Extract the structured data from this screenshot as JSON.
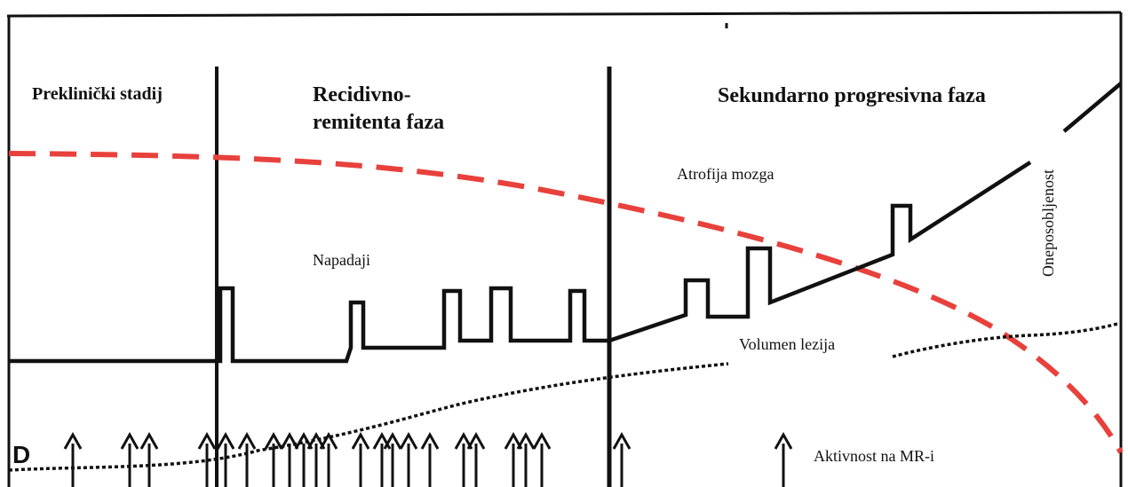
{
  "phases": {
    "preclinical": "Preklinički stadij",
    "relapsing_line1": "Recidivno-",
    "relapsing_line2": "remitenta faza",
    "secondary": "Sekundarno progresivna faza"
  },
  "curves": {
    "brain_atrophy": "Atrofija mozga",
    "attacks": "Napadaji",
    "disability": "Oneposobljenost",
    "lesion_volume": "Volumen lezija",
    "mri_activity": "Aktivnost na MR-i"
  },
  "panel_letter": "D",
  "colors": {
    "atrophy_curve": "#e8413c",
    "lines": "#111111"
  }
}
